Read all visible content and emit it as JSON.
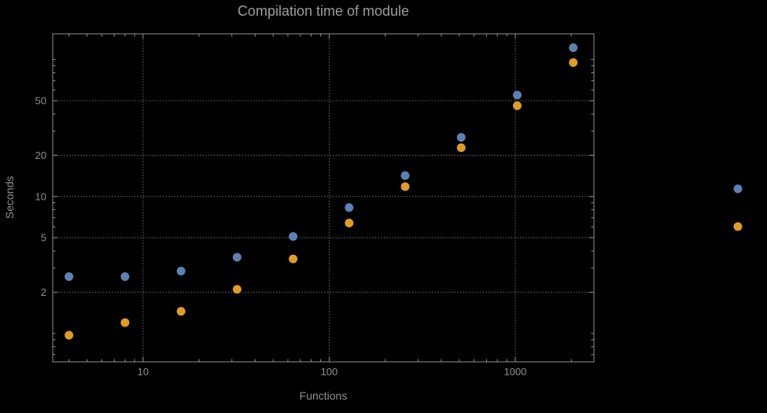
{
  "chart_data": {
    "type": "scatter",
    "scale": "log-log",
    "title": "Compilation time of module",
    "xlabel": "Functions",
    "ylabel": "Seconds",
    "x": [
      4,
      8,
      16,
      32,
      64,
      128,
      256,
      512,
      1024,
      2048
    ],
    "series": [
      {
        "name": "series-blue",
        "color": "#5E81B5",
        "values": [
          2.6,
          2.6,
          2.85,
          3.6,
          5.1,
          8.3,
          14.2,
          27,
          55,
          122
        ]
      },
      {
        "name": "series-orange",
        "color": "#E19C24",
        "values": [
          0.97,
          1.2,
          1.45,
          2.1,
          3.5,
          6.4,
          11.8,
          22.7,
          46,
          95
        ]
      }
    ],
    "x_ticks": [
      10,
      100,
      1000
    ],
    "y_ticks": [
      2,
      5,
      10,
      20,
      50
    ],
    "x_range": [
      3.27,
      2645
    ],
    "y_range": [
      0.62,
      154
    ],
    "grid": true,
    "legend": {
      "labels_visible": false,
      "markers": [
        {
          "color": "#5E81B5"
        },
        {
          "color": "#E19C24"
        }
      ]
    },
    "colors": {
      "background": "#000000",
      "frame": "#8f8f8f",
      "grid": "#5a5a5a",
      "tick_text": "#8f8f8f",
      "title_text": "#9c9c9c"
    }
  }
}
